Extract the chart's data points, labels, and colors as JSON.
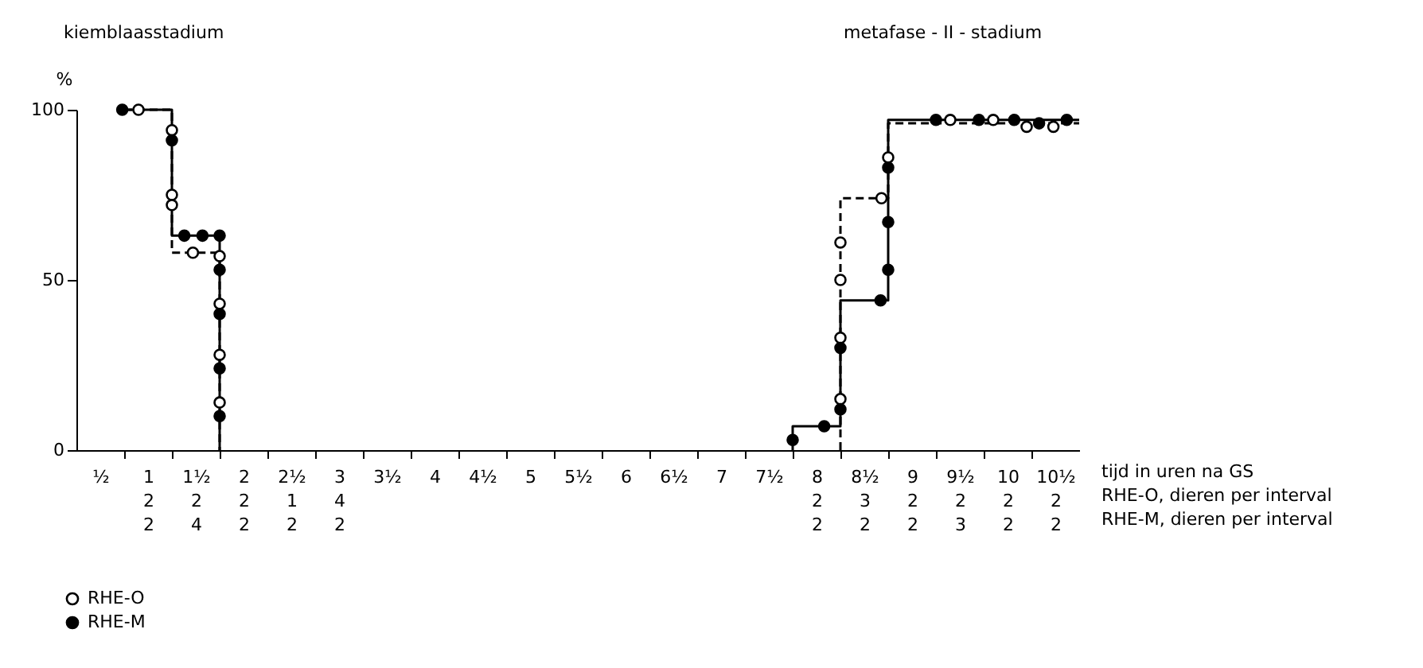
{
  "chart_data": {
    "type": "scatter",
    "ylabel": "%",
    "xlabel": "tijd in uren na GS",
    "annotations": [
      "kiemblaasstadium",
      "metafase - II - stadium",
      "RHE-O, dieren per interval",
      "RHE-M, dieren per interval"
    ],
    "xlim": [
      0.25,
      10.75
    ],
    "ylim": [
      0,
      100
    ],
    "yticks": [
      0,
      50,
      100
    ],
    "xticks": [
      {
        "value": 0.5,
        "label": "½"
      },
      {
        "value": 0.75,
        "label": null
      },
      {
        "value": 1,
        "label": "1\n2\n2"
      },
      {
        "value": 1.25,
        "label": null
      },
      {
        "value": 1.5,
        "label": "1½\n2\n4"
      },
      {
        "value": 1.75,
        "label": null
      },
      {
        "value": 2,
        "label": "2\n2\n2"
      },
      {
        "value": 2.25,
        "label": null
      },
      {
        "value": 2.5,
        "label": "2½\n1\n2"
      },
      {
        "value": 2.75,
        "label": null
      },
      {
        "value": 3,
        "label": "3\n4\n2"
      },
      {
        "value": 3.25,
        "label": null
      },
      {
        "value": 3.5,
        "label": "3½"
      },
      {
        "value": 3.75,
        "label": null
      },
      {
        "value": 4,
        "label": "4"
      },
      {
        "value": 4.25,
        "label": null
      },
      {
        "value": 4.5,
        "label": "4½"
      },
      {
        "value": 4.75,
        "label": null
      },
      {
        "value": 5,
        "label": "5"
      },
      {
        "value": 5.25,
        "label": null
      },
      {
        "value": 5.5,
        "label": "5½"
      },
      {
        "value": 5.75,
        "label": null
      },
      {
        "value": 6,
        "label": "6"
      },
      {
        "value": 6.25,
        "label": null
      },
      {
        "value": 6.5,
        "label": "6½"
      },
      {
        "value": 6.75,
        "label": null
      },
      {
        "value": 7,
        "label": "7"
      },
      {
        "value": 7.25,
        "label": null
      },
      {
        "value": 7.5,
        "label": "7½"
      },
      {
        "value": 7.75,
        "label": null
      },
      {
        "value": 8,
        "label": "8\n2\n2"
      },
      {
        "value": 8.25,
        "label": null
      },
      {
        "value": 8.5,
        "label": "8½\n3\n2"
      },
      {
        "value": 8.75,
        "label": null
      },
      {
        "value": 9,
        "label": "9\n2\n2"
      },
      {
        "value": 9.25,
        "label": null
      },
      {
        "value": 9.5,
        "label": "9½\n2\n3"
      },
      {
        "value": 9.75,
        "label": null
      },
      {
        "value": 10,
        "label": "10\n2\n2"
      },
      {
        "value": 10.25,
        "label": null
      },
      {
        "value": 10.5,
        "label": "10½\n2\n2"
      }
    ],
    "grid": false,
    "legend": "bottom left",
    "marker": "circle",
    "series": [
      {
        "name": "RHE-O",
        "type": "scatter",
        "line_style": "dashed",
        "color": "#000000",
        "x": [
          0.9,
          1.25,
          1.25,
          1.25,
          1.47,
          1.75,
          1.75,
          1.75,
          1.75,
          8.25,
          8.25,
          8.25,
          8.25,
          8.68,
          8.75,
          9.4,
          9.85,
          10.2,
          10.48
        ],
        "values": [
          100,
          94,
          75,
          72,
          58,
          57,
          43,
          28,
          14,
          15,
          33,
          50,
          61,
          74,
          86,
          97,
          97,
          95,
          95
        ]
      },
      {
        "name": "RHE-M",
        "type": "scatter",
        "line_style": "solid",
        "color": "#000000",
        "x": [
          0.73,
          1.25,
          1.38,
          1.57,
          1.75,
          1.75,
          1.75,
          1.75,
          1.75,
          7.75,
          8.08,
          8.25,
          8.25,
          8.67,
          8.75,
          8.75,
          8.75,
          9.25,
          9.7,
          10.07,
          10.33,
          10.62
        ],
        "values": [
          100,
          91,
          63,
          63,
          63,
          53,
          40,
          24,
          10,
          3,
          7,
          12,
          30,
          44,
          53,
          67,
          83,
          97,
          97,
          97,
          96,
          97
        ]
      },
      {
        "type": "step",
        "marker": "none",
        "line_style": "dashed",
        "color": "#000000",
        "x": [
          0.75,
          1.25,
          1.75
        ],
        "values": [
          100,
          58,
          0
        ]
      },
      {
        "type": "step",
        "marker": "none",
        "line_style": "dashed",
        "color": "#000000",
        "x": [
          8.25,
          8.25,
          8.75,
          10.75
        ],
        "values": [
          0,
          74,
          96,
          96
        ]
      },
      {
        "type": "step",
        "marker": "none",
        "line_style": "solid",
        "color": "#000000",
        "x": [
          0.75,
          1.25,
          1.75
        ],
        "values": [
          100,
          63,
          0
        ]
      },
      {
        "type": "step",
        "marker": "none",
        "line_style": "solid",
        "color": "#000000",
        "x": [
          7.75,
          7.75,
          8.25,
          8.75,
          10.75
        ],
        "values": [
          0,
          7,
          44,
          97,
          97
        ]
      }
    ]
  }
}
